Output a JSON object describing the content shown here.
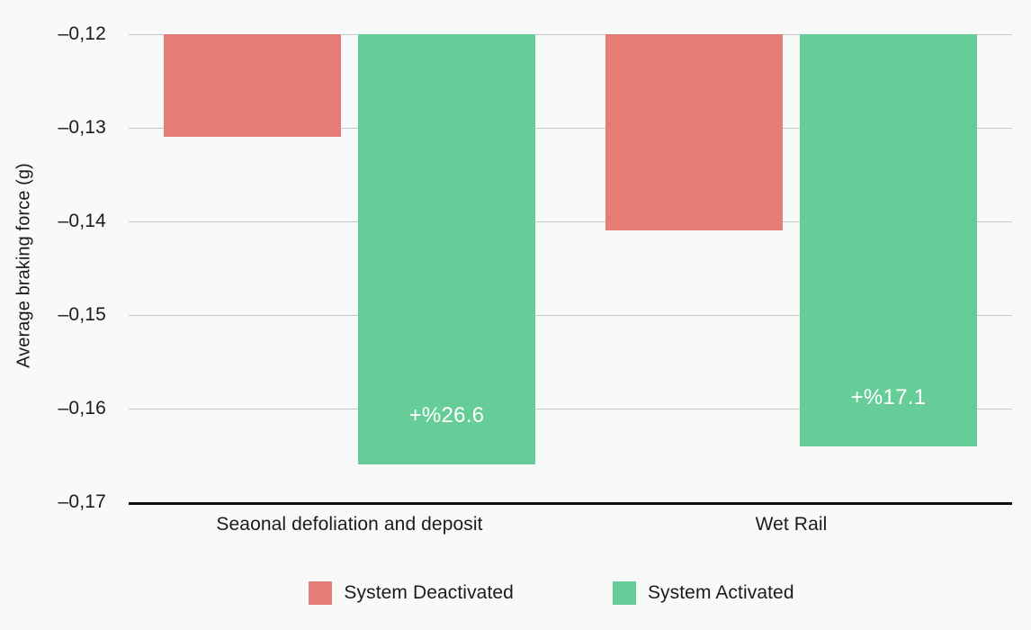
{
  "chart_data": {
    "type": "bar",
    "title": "",
    "xlabel": "",
    "ylabel": "Average braking force (g)",
    "categories": [
      "Seaonal defoliation and deposit",
      "Wet Rail"
    ],
    "series": [
      {
        "name": "System Deactivated",
        "color": "#e67c76",
        "values": [
          -0.131,
          -0.141
        ],
        "bar_labels": [
          "",
          ""
        ]
      },
      {
        "name": "System Activated",
        "color": "#66cd99",
        "values": [
          -0.166,
          -0.164
        ],
        "bar_labels": [
          "+%26.6",
          "+%17.1"
        ]
      }
    ],
    "ylim": [
      -0.17,
      -0.12
    ],
    "ytick_values": [
      -0.12,
      -0.13,
      -0.14,
      -0.15,
      -0.16,
      -0.17
    ],
    "ytick_labels": [
      "–0,12",
      "–0,13",
      "–0,14",
      "–0,15",
      "–0,16",
      "–0,17"
    ],
    "grid": true,
    "bars_grow_downward_from": -0.12,
    "legend_position": "bottom",
    "bar_label_color": "#ffffff",
    "background_color": "#f8faf9",
    "gridline_color": "#c6c8c7",
    "axis_line_color": "#111111",
    "text_color": "#1b1b1b"
  }
}
